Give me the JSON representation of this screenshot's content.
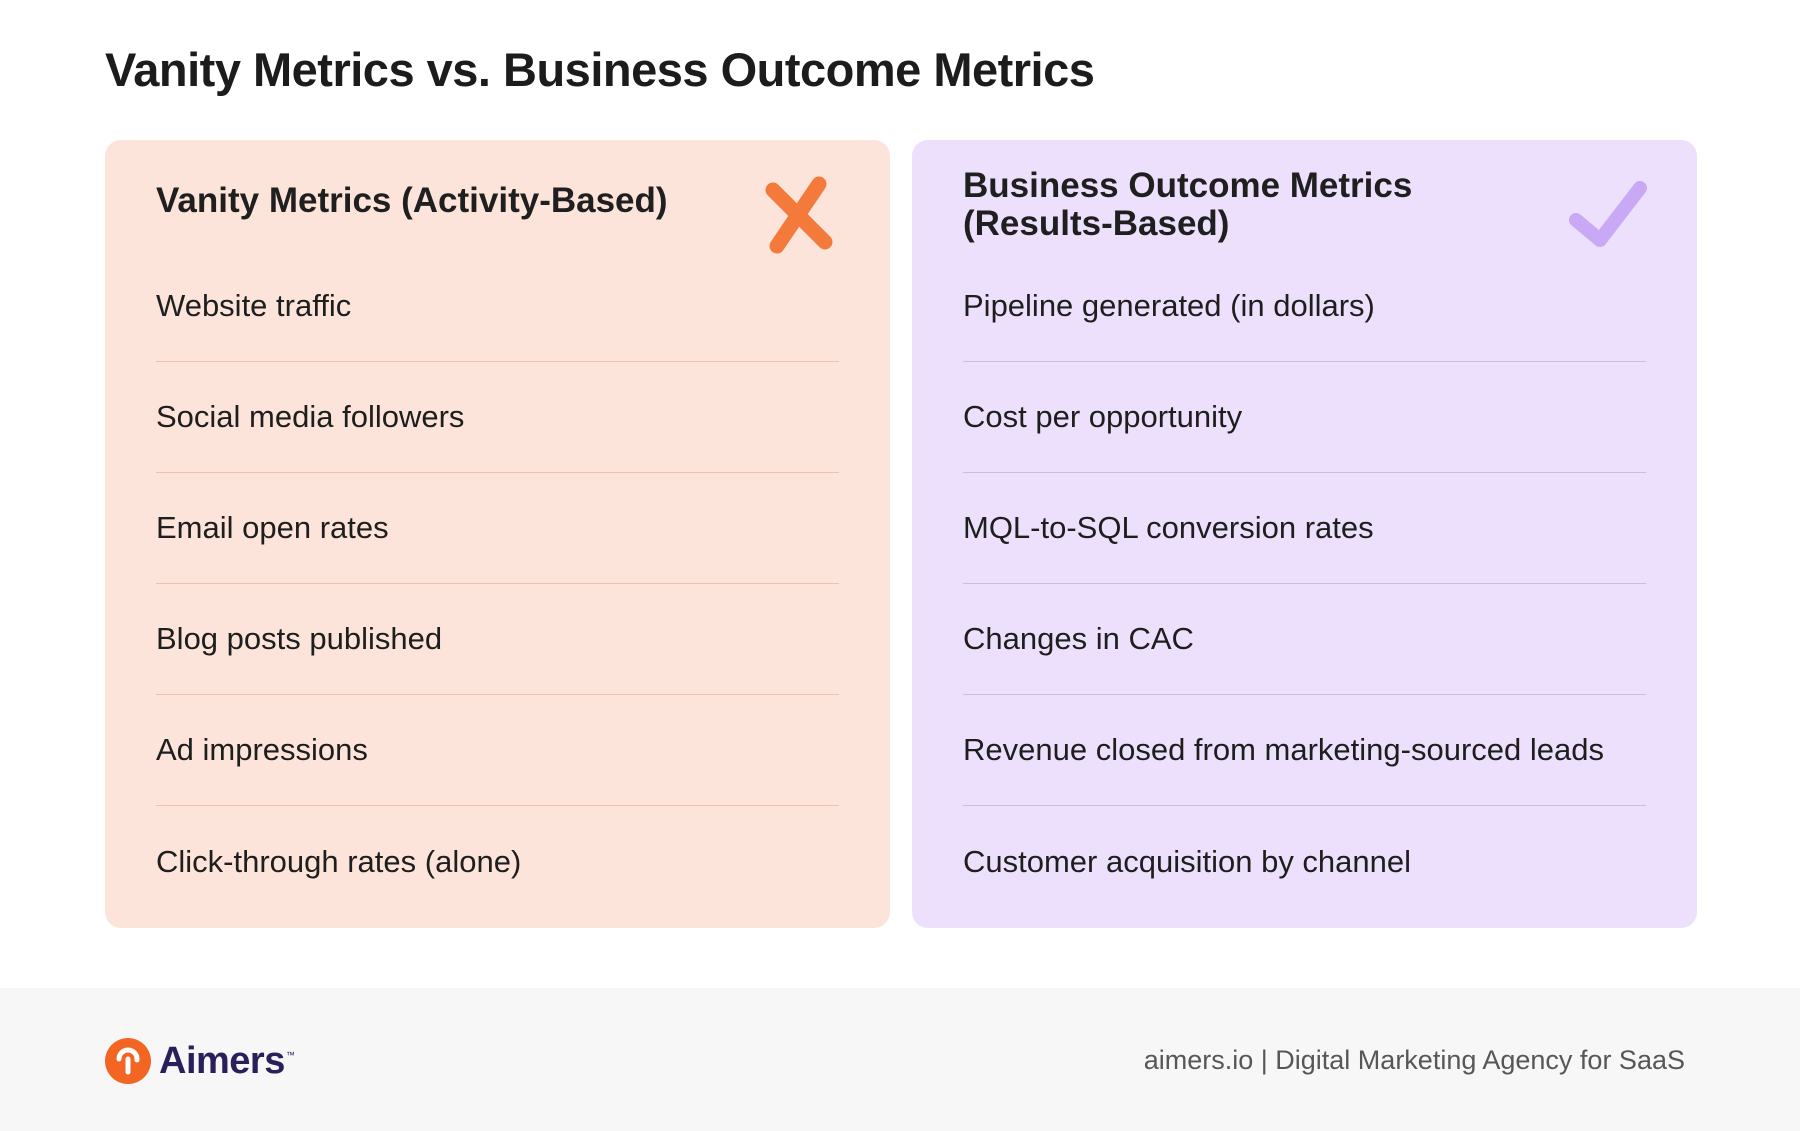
{
  "page": {
    "title": "Vanity Metrics vs. Business Outcome Metrics"
  },
  "vanity": {
    "heading": "Vanity Metrics (Activity-Based)",
    "icon": "x-mark-icon",
    "icon_color": "#f47a3c",
    "background": "#fde4da",
    "items": [
      "Website traffic",
      "Social media followers",
      "Email open rates",
      "Blog posts published",
      "Ad impressions",
      "Click-through rates (alone)"
    ]
  },
  "outcome": {
    "heading_line1": "Business Outcome Metrics",
    "heading_line2": "(Results-Based)",
    "icon": "checkmark-icon",
    "icon_color": "#c9a9f5",
    "background": "#ede0fc",
    "items": [
      "Pipeline generated (in dollars)",
      "Cost per opportunity",
      "MQL-to-SQL conversion rates",
      "Changes in CAC",
      "Revenue closed from marketing-sourced leads",
      "Customer acquisition by channel"
    ]
  },
  "footer": {
    "brand_name": "Aimers",
    "brand_tm": "™",
    "brand_color": "#f26522",
    "tagline": "aimers.io | Digital Marketing Agency for SaaS"
  }
}
